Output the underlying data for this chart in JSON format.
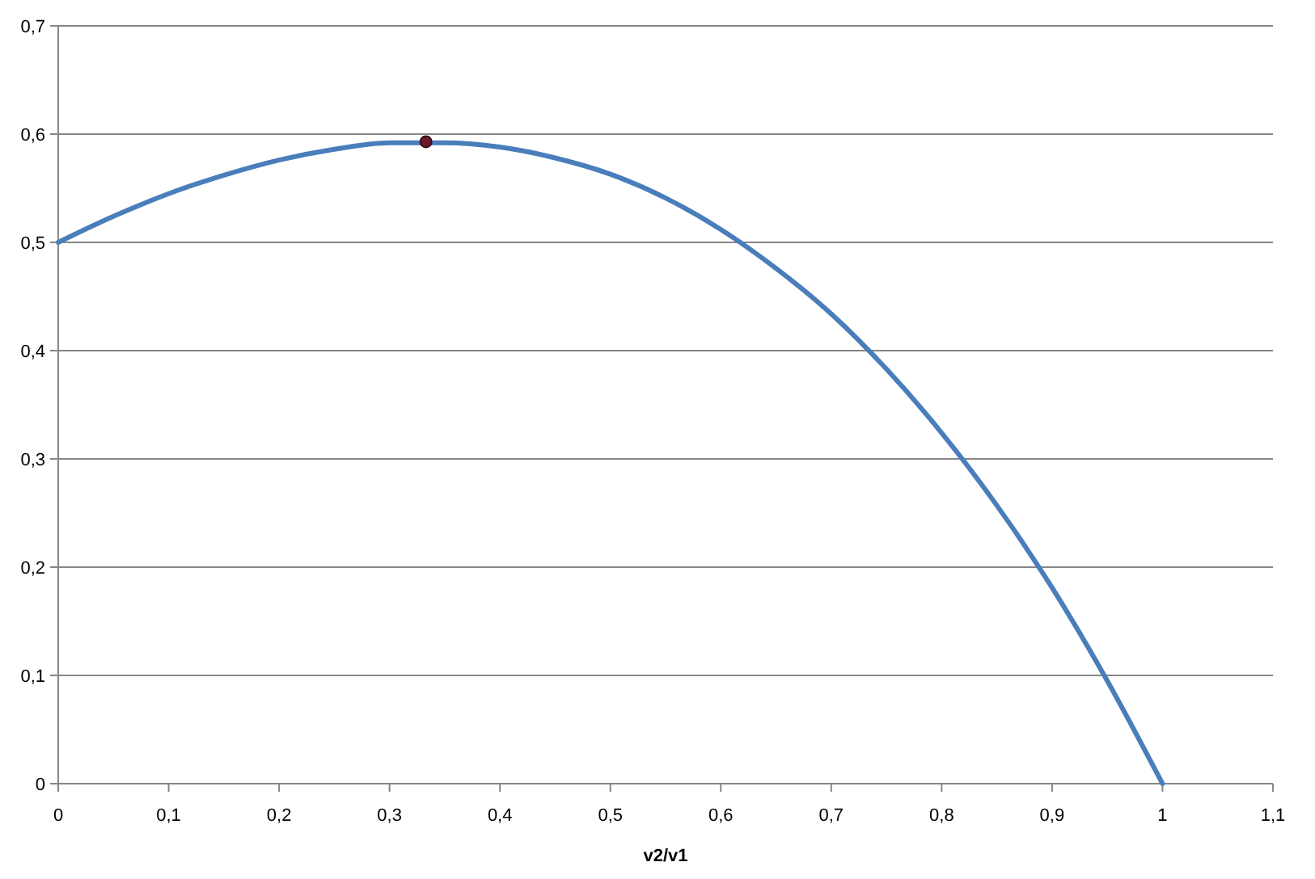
{
  "chart_data": {
    "type": "line",
    "xlabel": "v2/v1",
    "grid": "y",
    "xlim": [
      0,
      1.1
    ],
    "ylim": [
      0,
      0.7
    ],
    "xticks": [
      0,
      {
        "value": 0.1,
        "label": "0,1"
      },
      {
        "value": 0.2,
        "label": "0,2"
      },
      {
        "value": 0.3,
        "label": "0,3"
      },
      {
        "value": 0.4,
        "label": "0,4"
      },
      {
        "value": 0.5,
        "label": "0,5"
      },
      {
        "value": 0.6,
        "label": "0,6"
      },
      {
        "value": 0.7,
        "label": "0,7"
      },
      {
        "value": 0.8,
        "label": "0,8"
      },
      {
        "value": 0.9,
        "label": "0,9"
      },
      1,
      {
        "value": 1.1,
        "label": "1,1"
      }
    ],
    "yticks": [
      0,
      {
        "value": 0.1,
        "label": "0,1"
      },
      {
        "value": 0.2,
        "label": "0,2"
      },
      {
        "value": 0.3,
        "label": "0,3"
      },
      {
        "value": 0.4,
        "label": "0,4"
      },
      {
        "value": 0.5,
        "label": "0,5"
      },
      {
        "value": 0.6,
        "label": "0,6"
      },
      {
        "value": 0.7,
        "label": "0,7"
      }
    ],
    "series": [
      {
        "color": "#4a7ebb",
        "marker": "none",
        "x": [
          0,
          0.05,
          0.1,
          0.15,
          0.2,
          0.25,
          0.3,
          0.35,
          0.4,
          0.45,
          0.5,
          0.55,
          0.6,
          0.65,
          0.7,
          0.75,
          0.8,
          0.85,
          0.9,
          0.95,
          1
        ],
        "values": [
          0.5,
          0.524,
          0.545,
          0.562,
          0.576,
          0.586,
          0.592,
          0.592,
          0.588,
          0.578,
          0.563,
          0.541,
          0.512,
          0.476,
          0.434,
          0.383,
          0.324,
          0.257,
          0.181,
          0.095,
          0
        ]
      },
      {
        "type": "scatter",
        "color": "#6b1a2e",
        "marker": "circle",
        "x": [
          0.333
        ],
        "values": [
          0.593
        ]
      }
    ]
  }
}
